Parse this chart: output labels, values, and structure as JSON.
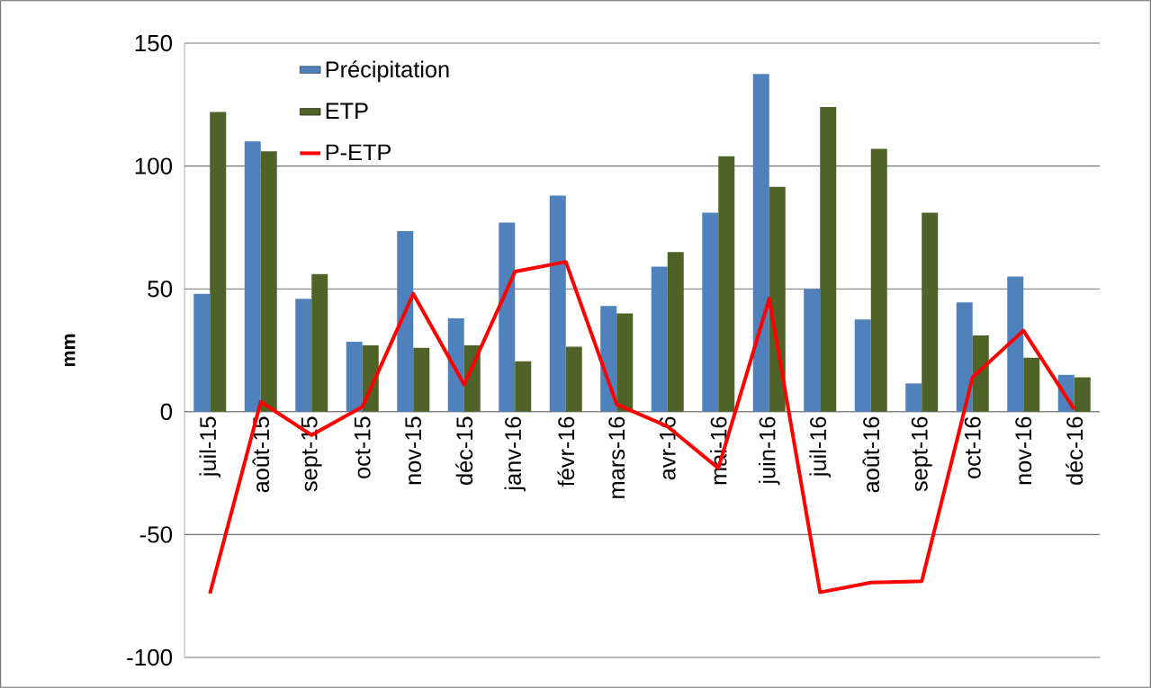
{
  "chart_data": {
    "type": "bar",
    "ylabel": "mm",
    "categories": [
      "juil-15",
      "août-15",
      "sept-15",
      "oct-15",
      "nov-15",
      "déc-15",
      "janv-16",
      "févr-16",
      "mars-16",
      "avr-16",
      "mai-16",
      "juin-16",
      "juil-16",
      "août-16",
      "sept-16",
      "oct-16",
      "nov-16",
      "déc-16"
    ],
    "series": [
      {
        "name": "Précipitation",
        "color": "#4f81bd",
        "values": [
          48,
          110,
          46,
          28.5,
          73.5,
          38,
          77,
          88,
          43,
          59,
          81,
          137.5,
          50,
          37.5,
          11.5,
          44.5,
          55,
          15
        ]
      },
      {
        "name": "ETP",
        "color": "#4f6228",
        "values": [
          122,
          106,
          56,
          27,
          26,
          27,
          20.5,
          26.5,
          40,
          65,
          104,
          91.5,
          124,
          107,
          81,
          31,
          22,
          14
        ]
      },
      {
        "name": "P-ETP",
        "type": "line",
        "color": "#ff0000",
        "values": [
          -74,
          4,
          -9.5,
          2,
          48,
          11,
          57,
          61,
          3,
          -6,
          -23,
          46,
          -73.5,
          -69.5,
          -69,
          14,
          33,
          1
        ]
      }
    ],
    "ylim": [
      -100,
      150
    ],
    "yticks": [
      -100,
      -50,
      0,
      50,
      100,
      150
    ],
    "grid": "y",
    "legend": "top left"
  }
}
